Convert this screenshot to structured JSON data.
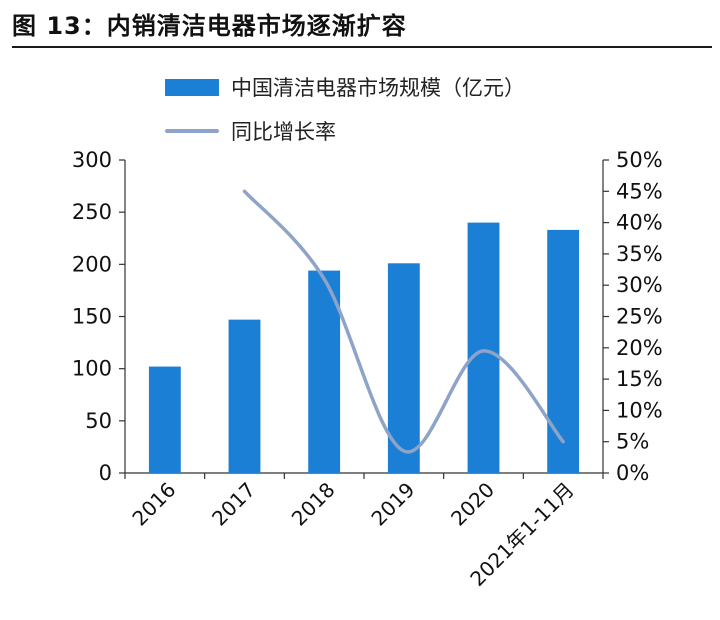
{
  "title": "图 13：内销清洁电器市场逐渐扩容",
  "chart_data": {
    "type": "bar+line",
    "categories": [
      "2016",
      "2017",
      "2018",
      "2019",
      "2020",
      "2021年1-11月"
    ],
    "series": [
      {
        "name": "中国清洁电器市场规模（亿元）",
        "type": "bar",
        "axis": "left",
        "color": "#1b7fd6",
        "values": [
          102,
          147,
          194,
          201,
          240,
          233
        ]
      },
      {
        "name": "同比增长率",
        "type": "line",
        "axis": "right",
        "color": "#8da4c8",
        "smooth": true,
        "values": [
          null,
          45,
          31,
          3.5,
          19.5,
          5
        ]
      }
    ],
    "left_axis": {
      "ylim": [
        0,
        300
      ],
      "ticks": [
        0,
        50,
        100,
        150,
        200,
        250,
        300
      ],
      "tick_labels": [
        "0",
        "50",
        "100",
        "150",
        "200",
        "250",
        "300"
      ]
    },
    "right_axis": {
      "ylim": [
        0,
        50
      ],
      "ticks": [
        0,
        5,
        10,
        15,
        20,
        25,
        30,
        35,
        40,
        45,
        50
      ],
      "tick_labels": [
        "0%",
        "5%",
        "10%",
        "15%",
        "20%",
        "25%",
        "30%",
        "35%",
        "40%",
        "45%",
        "50%"
      ]
    },
    "grid": false,
    "legend": "top"
  }
}
